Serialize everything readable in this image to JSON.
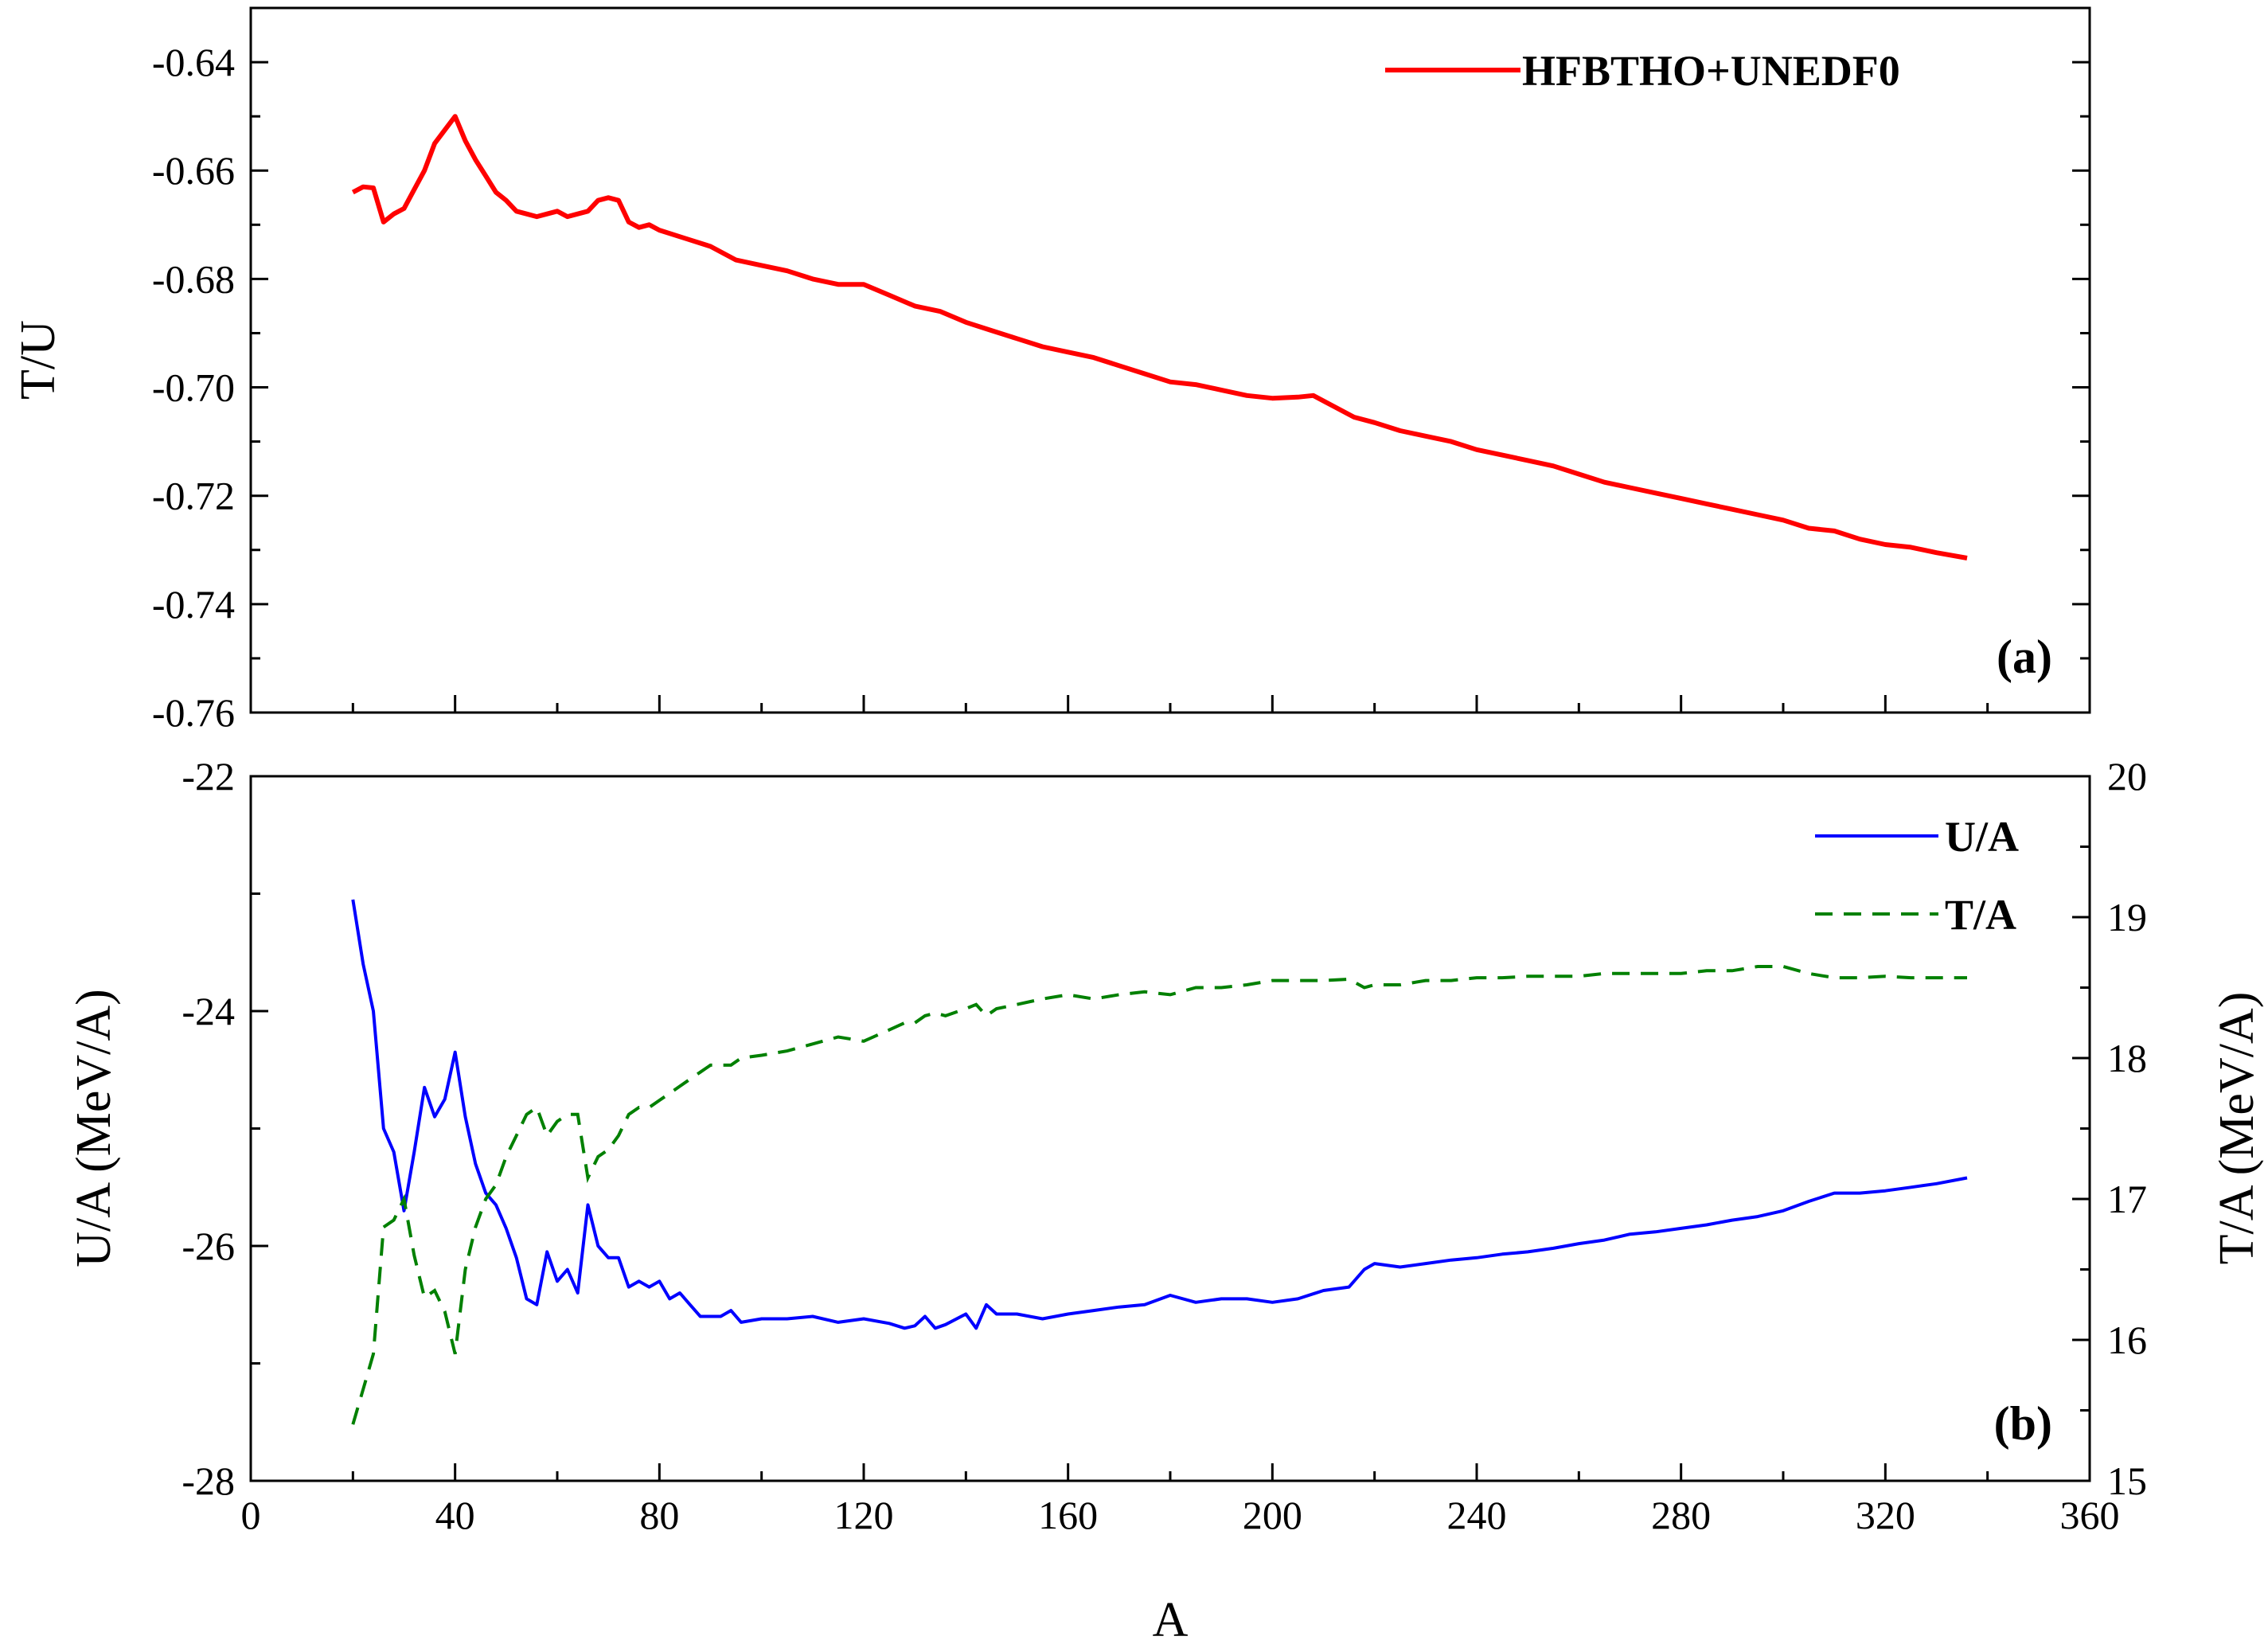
{
  "chart_data": [
    {
      "panel": "(a)",
      "type": "line",
      "xlabel": "A",
      "ylabel": "T/U",
      "xlim": [
        0,
        360
      ],
      "ylim": [
        -0.76,
        -0.63
      ],
      "xticks": [
        0,
        40,
        80,
        120,
        160,
        200,
        240,
        280,
        320,
        360
      ],
      "yticks": [
        -0.76,
        -0.74,
        -0.72,
        -0.7,
        -0.68,
        -0.66,
        -0.64
      ],
      "ytick_labels": [
        "-0.76",
        "-0.74",
        "-0.72",
        "-0.70",
        "-0.68",
        "-0.66",
        "-0.64"
      ],
      "legend": {
        "position": "top-right"
      },
      "grid": false,
      "series": [
        {
          "name": "HFBTHO+UNEDF0",
          "color": "#ff0000",
          "style": "solid",
          "x": [
            20,
            22,
            24,
            26,
            28,
            30,
            32,
            34,
            36,
            38,
            40,
            42,
            44,
            46,
            48,
            50,
            52,
            54,
            56,
            58,
            60,
            62,
            64,
            66,
            68,
            70,
            72,
            74,
            76,
            78,
            80,
            85,
            90,
            95,
            100,
            105,
            110,
            115,
            120,
            125,
            130,
            135,
            140,
            145,
            150,
            155,
            160,
            165,
            170,
            175,
            180,
            185,
            190,
            195,
            200,
            205,
            208,
            212,
            216,
            220,
            225,
            230,
            235,
            240,
            245,
            250,
            255,
            260,
            265,
            270,
            275,
            280,
            285,
            290,
            295,
            300,
            305,
            310,
            315,
            320,
            325,
            330,
            336
          ],
          "y": [
            -0.664,
            -0.663,
            -0.6632,
            -0.6695,
            -0.668,
            -0.667,
            -0.6635,
            -0.66,
            -0.655,
            -0.6525,
            -0.65,
            -0.6545,
            -0.658,
            -0.661,
            -0.664,
            -0.6655,
            -0.6675,
            -0.668,
            -0.6685,
            -0.668,
            -0.6675,
            -0.6685,
            -0.668,
            -0.6675,
            -0.6655,
            -0.665,
            -0.6655,
            -0.6695,
            -0.6705,
            -0.67,
            -0.671,
            -0.6725,
            -0.674,
            -0.6765,
            -0.6775,
            -0.6785,
            -0.68,
            -0.681,
            -0.681,
            -0.683,
            -0.685,
            -0.686,
            -0.688,
            -0.6895,
            -0.691,
            -0.6925,
            -0.6935,
            -0.6945,
            -0.696,
            -0.6975,
            -0.699,
            -0.6995,
            -0.7005,
            -0.7015,
            -0.702,
            -0.7018,
            -0.7015,
            -0.7035,
            -0.7055,
            -0.7065,
            -0.708,
            -0.709,
            -0.71,
            -0.7115,
            -0.7125,
            -0.7135,
            -0.7145,
            -0.716,
            -0.7175,
            -0.7185,
            -0.7195,
            -0.7205,
            -0.7215,
            -0.7225,
            -0.7235,
            -0.7245,
            -0.726,
            -0.7265,
            -0.728,
            -0.729,
            -0.7295,
            -0.7305,
            -0.7315
          ]
        }
      ]
    },
    {
      "panel": "(b)",
      "type": "line",
      "xlabel": "A",
      "ylabel": "U/A (MeV/A)",
      "ylabel_right": "T/A (MeV/A)",
      "xlim": [
        0,
        360
      ],
      "ylim": [
        -28,
        -22
      ],
      "ylim_right": [
        15,
        20
      ],
      "xticks": [
        0,
        40,
        80,
        120,
        160,
        200,
        240,
        280,
        320,
        360
      ],
      "xtick_labels": [
        "0",
        "40",
        "80",
        "120",
        "160",
        "200",
        "240",
        "280",
        "320",
        "360"
      ],
      "yticks": [
        -28,
        -26,
        -24,
        -22
      ],
      "ytick_labels": [
        "-28",
        "-26",
        "-24",
        "-22"
      ],
      "yticks_right": [
        15,
        16,
        17,
        18,
        19,
        20
      ],
      "ytick_labels_right": [
        "15",
        "16",
        "17",
        "18",
        "19",
        "20"
      ],
      "legend": {
        "position": "top-right"
      },
      "grid": false,
      "series": [
        {
          "name": "U/A",
          "axis": "left",
          "color": "#0000ff",
          "style": "solid",
          "x": [
            20,
            22,
            24,
            26,
            28,
            30,
            32,
            34,
            36,
            38,
            40,
            42,
            44,
            46,
            48,
            50,
            52,
            54,
            56,
            58,
            60,
            62,
            64,
            66,
            68,
            70,
            72,
            74,
            76,
            78,
            80,
            82,
            84,
            86,
            88,
            90,
            92,
            94,
            96,
            100,
            105,
            110,
            115,
            120,
            125,
            128,
            130,
            132,
            134,
            136,
            140,
            142,
            144,
            146,
            150,
            155,
            160,
            165,
            170,
            175,
            180,
            185,
            190,
            195,
            200,
            205,
            210,
            215,
            218,
            220,
            225,
            230,
            235,
            240,
            245,
            250,
            255,
            260,
            265,
            270,
            275,
            280,
            285,
            290,
            295,
            300,
            305,
            310,
            315,
            320,
            325,
            330,
            336
          ],
          "y": [
            -23.05,
            -23.6,
            -24.0,
            -25.0,
            -25.2,
            -25.7,
            -25.2,
            -24.65,
            -24.9,
            -24.75,
            -24.35,
            -24.9,
            -25.3,
            -25.55,
            -25.65,
            -25.85,
            -26.1,
            -26.45,
            -26.5,
            -26.05,
            -26.3,
            -26.2,
            -26.4,
            -25.65,
            -26.0,
            -26.1,
            -26.1,
            -26.35,
            -26.3,
            -26.35,
            -26.3,
            -26.45,
            -26.4,
            -26.5,
            -26.6,
            -26.6,
            -26.6,
            -26.55,
            -26.65,
            -26.62,
            -26.62,
            -26.6,
            -26.65,
            -26.62,
            -26.66,
            -26.7,
            -26.68,
            -26.6,
            -26.7,
            -26.67,
            -26.58,
            -26.7,
            -26.5,
            -26.58,
            -26.58,
            -26.62,
            -26.58,
            -26.55,
            -26.52,
            -26.5,
            -26.42,
            -26.48,
            -26.45,
            -26.45,
            -26.48,
            -26.45,
            -26.38,
            -26.35,
            -26.2,
            -26.15,
            -26.18,
            -26.15,
            -26.12,
            -26.1,
            -26.07,
            -26.05,
            -26.02,
            -25.98,
            -25.95,
            -25.9,
            -25.88,
            -25.85,
            -25.82,
            -25.78,
            -25.75,
            -25.7,
            -25.62,
            -25.55,
            -25.55,
            -25.53,
            -25.5,
            -25.47,
            -25.42
          ]
        },
        {
          "name": "T/A",
          "axis": "right",
          "color": "#008000",
          "style": "dashed",
          "x": [
            20,
            22,
            24,
            26,
            28,
            30,
            32,
            34,
            36,
            38,
            40,
            42,
            44,
            46,
            48,
            50,
            52,
            54,
            56,
            58,
            60,
            62,
            64,
            66,
            68,
            70,
            72,
            74,
            76,
            78,
            80,
            82,
            84,
            86,
            88,
            90,
            92,
            94,
            96,
            100,
            105,
            110,
            115,
            120,
            125,
            128,
            130,
            132,
            134,
            136,
            140,
            142,
            144,
            146,
            150,
            155,
            160,
            165,
            170,
            175,
            180,
            185,
            190,
            195,
            200,
            205,
            210,
            215,
            218,
            220,
            225,
            230,
            235,
            240,
            245,
            250,
            255,
            260,
            265,
            270,
            275,
            280,
            285,
            290,
            295,
            300,
            305,
            310,
            315,
            320,
            325,
            330,
            336
          ],
          "y": [
            15.4,
            15.65,
            15.9,
            16.8,
            16.85,
            17.0,
            16.6,
            16.3,
            16.35,
            16.2,
            15.9,
            16.5,
            16.8,
            17.0,
            17.1,
            17.3,
            17.45,
            17.6,
            17.65,
            17.45,
            17.55,
            17.6,
            17.6,
            17.15,
            17.3,
            17.35,
            17.45,
            17.6,
            17.65,
            17.65,
            17.7,
            17.75,
            17.8,
            17.85,
            17.9,
            17.95,
            17.95,
            17.95,
            18.0,
            18.02,
            18.05,
            18.1,
            18.15,
            18.12,
            18.2,
            18.25,
            18.25,
            18.3,
            18.32,
            18.3,
            18.35,
            18.38,
            18.3,
            18.35,
            18.38,
            18.42,
            18.45,
            18.42,
            18.45,
            18.47,
            18.45,
            18.5,
            18.5,
            18.52,
            18.55,
            18.55,
            18.55,
            18.56,
            18.5,
            18.52,
            18.52,
            18.55,
            18.55,
            18.57,
            18.57,
            18.58,
            18.58,
            18.58,
            18.6,
            18.6,
            18.6,
            18.6,
            18.62,
            18.62,
            18.65,
            18.65,
            18.6,
            18.57,
            18.57,
            18.58,
            18.57,
            18.57,
            18.57
          ]
        }
      ]
    }
  ]
}
